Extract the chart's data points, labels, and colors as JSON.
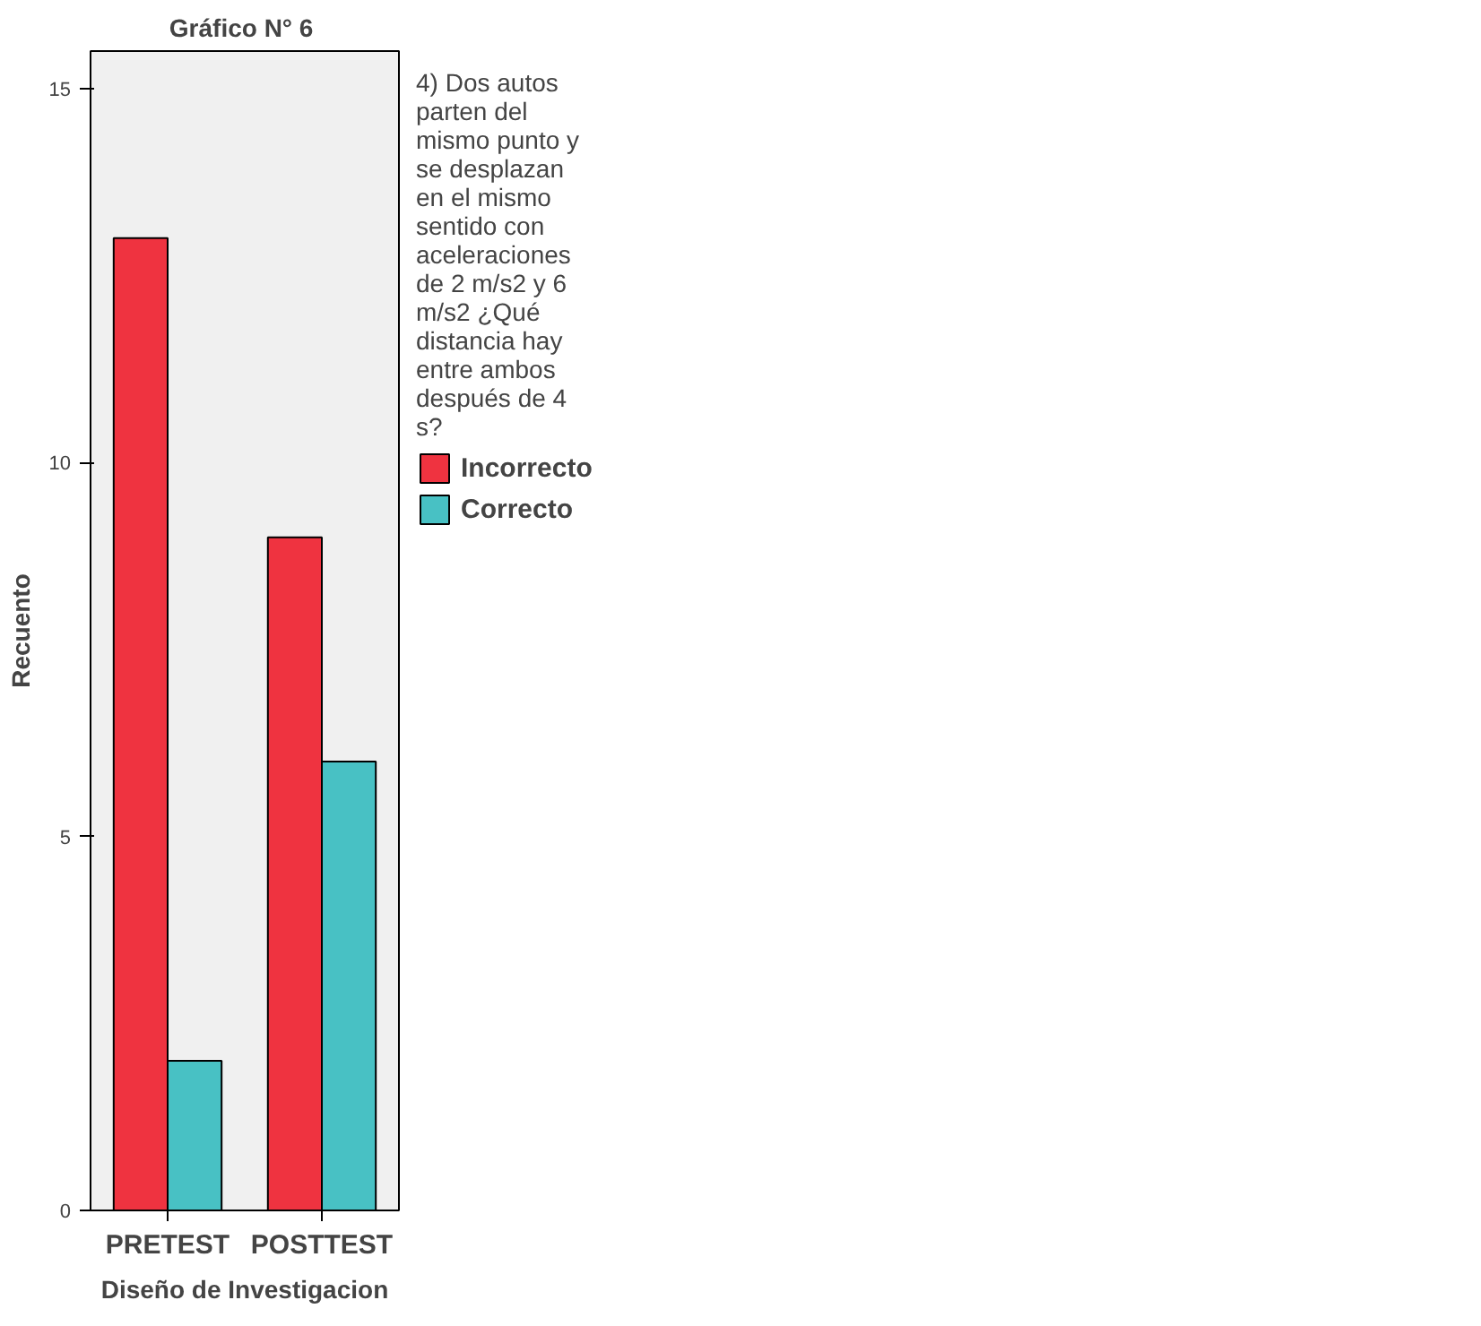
{
  "chart_data": {
    "type": "bar",
    "title": "Gráfico  N° 6",
    "xlabel": "Diseño de Investigacion",
    "ylabel": "Recuento",
    "legend_title": "4) Dos autos parten del mismo punto y se desplazan en el mismo sentido con aceleraciones de 2 m/s2 y 6 m/s2 ¿Qué distancia hay entre ambos después de 4 s?",
    "categories": [
      "PRETEST",
      "POSTTEST"
    ],
    "series": [
      {
        "name": "Incorrecto",
        "color": "#ef3340",
        "values": [
          13,
          9
        ]
      },
      {
        "name": "Correcto",
        "color": "#48c1c4",
        "values": [
          2,
          6
        ]
      }
    ],
    "ylim": [
      0,
      15.5
    ],
    "yticks": [
      0,
      5,
      10,
      15
    ],
    "grid": false,
    "legend": "right"
  }
}
